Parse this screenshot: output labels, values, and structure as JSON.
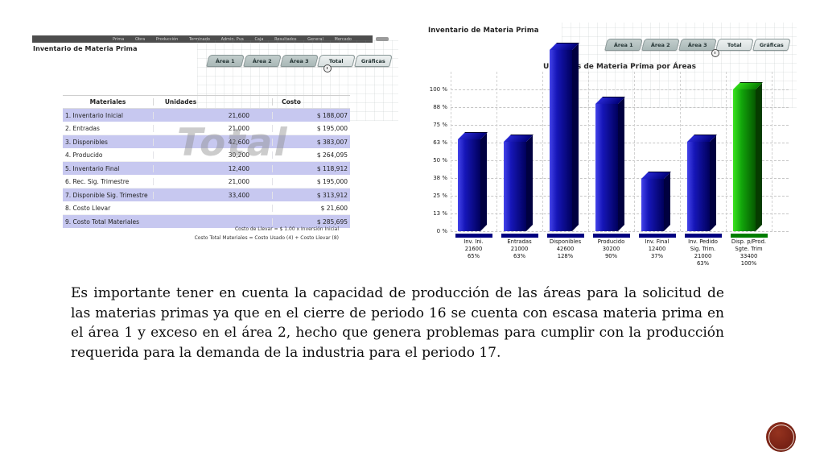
{
  "left_panel": {
    "menu_items": [
      "Prima",
      "Obra",
      "Producción",
      "Terminado",
      "Admin. Pva",
      "Caja",
      "Resultados",
      "General",
      "Mercado"
    ],
    "title": "Inventario de Materia Prima",
    "tabs": [
      {
        "label": "Área 1",
        "style": "gray"
      },
      {
        "label": "Área 2",
        "style": "gray"
      },
      {
        "label": "Área 3",
        "style": "gray"
      },
      {
        "label": "Total",
        "style": "light"
      },
      {
        "label": "Gráficas",
        "style": "light"
      }
    ],
    "watermark": "Total",
    "table": {
      "headers": [
        "Materiales",
        "Unidades",
        "Costo"
      ],
      "rows": [
        [
          "1. Inventario Inicial",
          "21,600",
          "$ 188,007"
        ],
        [
          "2. Entradas",
          "21,000",
          "$ 195,000"
        ],
        [
          "3. Disponibles",
          "42,600",
          "$ 383,007"
        ],
        [
          "4. Producido",
          "30,200",
          "$ 264,095"
        ],
        [
          "5. Inventario Final",
          "12,400",
          "$ 118,912"
        ],
        [
          "6. Rec. Sig. Trimestre",
          "21,000",
          "$ 195,000"
        ],
        [
          "7. Disponible Sig. Trimestre",
          "33,400",
          "$ 313,912"
        ],
        [
          "8. Costo Llevar",
          "",
          "$ 21,600"
        ],
        [
          "9. Costo Total Materiales",
          "",
          "$ 285,695"
        ]
      ],
      "footnotes": [
        "Costo de Llevar = $ 1.00 x Inversión Inicial",
        "Costo Total Materiales = Costo Usado (4) + Costo Llevar (8)"
      ]
    }
  },
  "right_panel": {
    "title": "Inventario de Materia Prima",
    "tabs": [
      {
        "label": "Área 1",
        "style": "gray"
      },
      {
        "label": "Área 2",
        "style": "gray"
      },
      {
        "label": "Área 3",
        "style": "gray"
      },
      {
        "label": "Total",
        "style": "light"
      },
      {
        "label": "Gráficas",
        "style": "light"
      }
    ]
  },
  "chart_data": {
    "type": "bar",
    "title": "Unidades de Materia Prima por Áreas",
    "xlabel": "",
    "ylabel": "",
    "ylim": [
      0,
      128
    ],
    "grid": "dashed",
    "legend": "none",
    "ytick_labels": [
      "100 %",
      "88 %",
      "75 %",
      "63 %",
      "50 %",
      "38 %",
      "25 %",
      "13 %",
      "0 %"
    ],
    "categories": [
      "Inv. Ini.",
      "Entradas",
      "Disponibles",
      "Producido",
      "Inv. Final",
      "Inv. Pedido Sig. Trim.",
      "Disp. p/Prod. Sgte. Trim"
    ],
    "category_label_lines": [
      [
        "Inv. Ini."
      ],
      [
        "Entradas"
      ],
      [
        "Disponibles"
      ],
      [
        "Producido"
      ],
      [
        "Inv. Final"
      ],
      [
        "Inv. Pedido",
        "Sig. Trim."
      ],
      [
        "Disp. p/Prod.",
        "Sgte. Trim"
      ]
    ],
    "units": [
      21600,
      21000,
      42600,
      30200,
      12400,
      21000,
      33400
    ],
    "values_pct": [
      65,
      63,
      128,
      90,
      37,
      63,
      100
    ],
    "bar_colors": [
      "navy",
      "navy",
      "navy",
      "navy",
      "navy",
      "navy",
      "green"
    ],
    "navy_hex": "#00008c",
    "green_hex": "#00a000"
  },
  "body_text": "Es importante tener en cuenta la capacidad de producción de las áreas para la solicitud de las materias primas ya que en el cierre de periodo 16  se cuenta con escasa materia prima en el área 1 y exceso en el área 2, hecho que genera problemas para cumplir con la producción requerida para la demanda de la industria para el periodo 17.",
  "logo": {
    "color": "#7a2316",
    "ring_color": "#f5ece1"
  }
}
